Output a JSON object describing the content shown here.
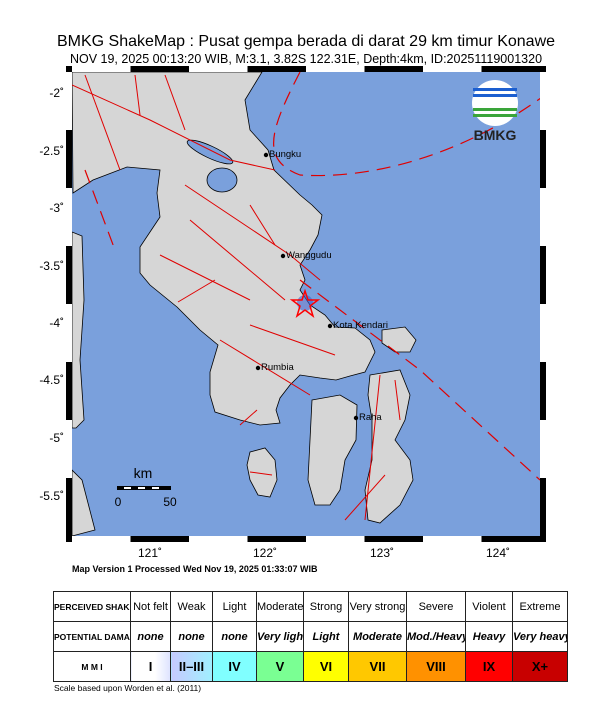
{
  "header": {
    "title": "BMKG ShakeMap : Pusat gempa berada di darat 29 km timur Konawe",
    "subtitle": "NOV 19, 2025 00:13:20 WIB, M:3.1, 3.82S 122.31E, Depth:4km, ID:20251119001320"
  },
  "map": {
    "lat_labels": [
      "-2˚",
      "-2.5˚",
      "-3˚",
      "-3.5˚",
      "-4˚",
      "-4.5˚",
      "-5˚",
      "-5.5˚"
    ],
    "lon_labels": [
      "121˚",
      "122˚",
      "123˚",
      "124˚"
    ],
    "places": [
      "Bungku",
      "Wanggudu",
      "Kota Kendari",
      "Rumbia",
      "Raha"
    ],
    "logo_text": "BMKG",
    "scale_bar": {
      "unit": "km",
      "min": "0",
      "max": "50"
    },
    "epicenter": {
      "lat": -3.82,
      "lon": 122.31
    },
    "colors": {
      "sea": "#7aa0dc",
      "land": "#d8d8d8",
      "faults": "#e00000",
      "epicenter": "#ff0000"
    }
  },
  "version_text": "Map Version 1 Processed Wed Nov 19, 2025 01:33:07 WIB",
  "legend": {
    "row_labels": {
      "shaking": "PERCEIVED SHAKING",
      "damage": "POTENTIAL DAMAGE",
      "mmi": "M M I"
    },
    "shaking": [
      "Not felt",
      "Weak",
      "Light",
      "Moderate",
      "Strong",
      "Very strong",
      "Severe",
      "Violent",
      "Extreme"
    ],
    "damage": [
      "none",
      "none",
      "none",
      "Very light",
      "Light",
      "Moderate",
      "Mod./Heavy",
      "Heavy",
      "Very heavy"
    ],
    "mmi": [
      "I",
      "II–III",
      "IV",
      "V",
      "VI",
      "VII",
      "VIII",
      "IX",
      "X+"
    ],
    "mmi_colors": [
      "#ffffff",
      "#bfccff",
      "#80ffff",
      "#7aff93",
      "#ffff00",
      "#ffc800",
      "#ff9100",
      "#ff0000",
      "#c80000"
    ]
  },
  "scale_note": "Scale based upon Worden et al. (2011)"
}
